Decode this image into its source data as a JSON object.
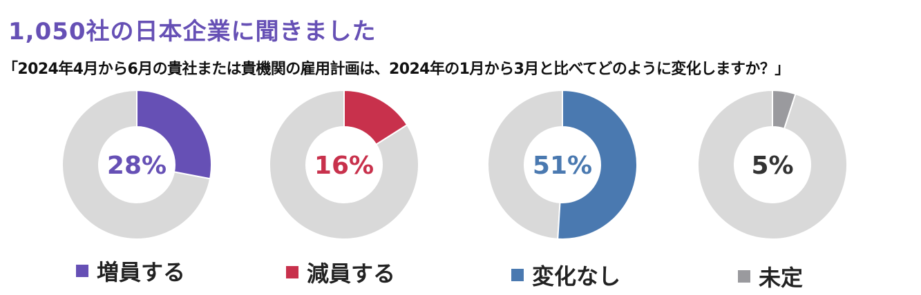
{
  "header": {
    "title": "1,050社の日本企業に聞きました",
    "question": "「2024年4月から6月の貴社または貴機関の雇用計画は、2024年の1月から3月と比べてどのように変化しますか？」"
  },
  "chart_data": [
    {
      "type": "pie",
      "donut": true,
      "categories": [
        "増員する"
      ],
      "value": 28,
      "label": "28%",
      "legend": "増員する",
      "color": "#6650b5",
      "rest_color": "#d9d9d9"
    },
    {
      "type": "pie",
      "donut": true,
      "categories": [
        "減員する"
      ],
      "value": 16,
      "label": "16%",
      "legend": "減員する",
      "color": "#c8314c",
      "rest_color": "#d9d9d9"
    },
    {
      "type": "pie",
      "donut": true,
      "categories": [
        "変化なし"
      ],
      "value": 51,
      "label": "51%",
      "legend": "変化なし",
      "color": "#4a79b0",
      "rest_color": "#d9d9d9"
    },
    {
      "type": "pie",
      "donut": true,
      "categories": [
        "未定"
      ],
      "value": 5,
      "label": "5%",
      "legend": "未定",
      "color": "#9a9a9e",
      "label_color": "#333333",
      "rest_color": "#d9d9d9"
    }
  ]
}
